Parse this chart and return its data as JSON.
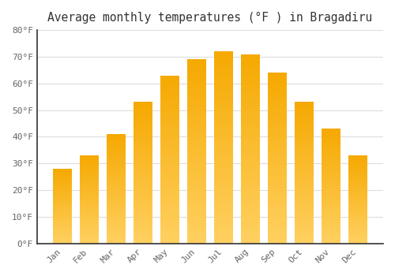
{
  "title": "Average monthly temperatures (°F ) in Bragadiru",
  "months": [
    "Jan",
    "Feb",
    "Mar",
    "Apr",
    "May",
    "Jun",
    "Jul",
    "Aug",
    "Sep",
    "Oct",
    "Nov",
    "Dec"
  ],
  "values": [
    28,
    33,
    41,
    53,
    63,
    69,
    72,
    71,
    64,
    53,
    43,
    33
  ],
  "bar_color_dark": "#F5A800",
  "bar_color_light": "#FFD060",
  "ylim": [
    0,
    80
  ],
  "yticks": [
    0,
    10,
    20,
    30,
    40,
    50,
    60,
    70,
    80
  ],
  "ytick_labels": [
    "0°F",
    "10°F",
    "20°F",
    "30°F",
    "40°F",
    "50°F",
    "60°F",
    "70°F",
    "80°F"
  ],
  "background_color": "#FFFFFF",
  "grid_color": "#DDDDDD",
  "title_fontsize": 10.5,
  "tick_fontsize": 8,
  "font_family": "monospace",
  "bar_width": 0.7
}
